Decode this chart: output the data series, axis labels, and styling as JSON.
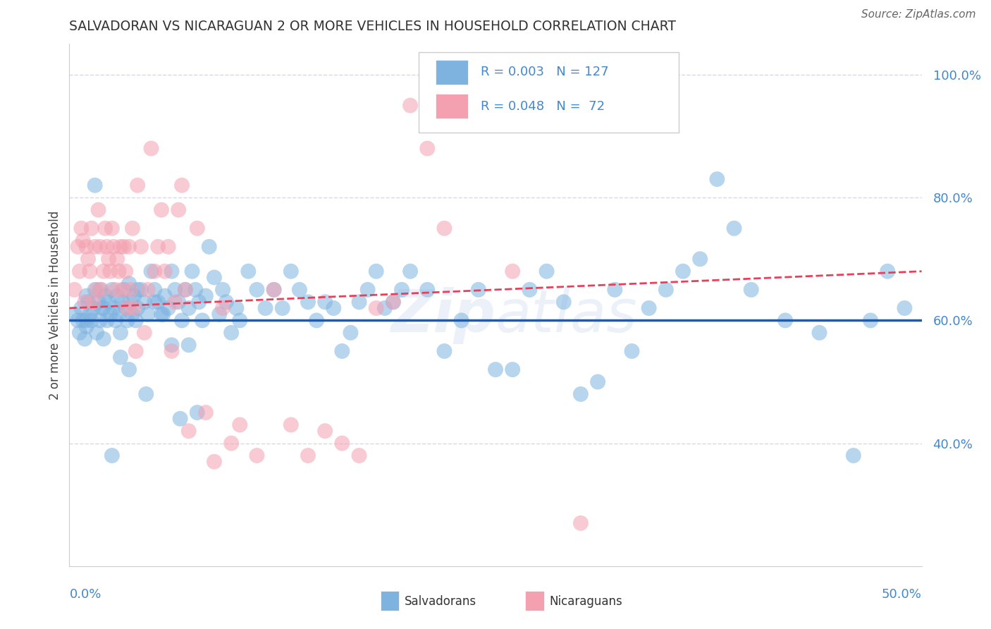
{
  "title": "SALVADORAN VS NICARAGUAN 2 OR MORE VEHICLES IN HOUSEHOLD CORRELATION CHART",
  "source": "Source: ZipAtlas.com",
  "ylabel": "2 or more Vehicles in Household",
  "watermark": "ZipAtlas",
  "x_min": 0.0,
  "x_max": 0.5,
  "y_min": 0.2,
  "y_max": 1.05,
  "ytick_labels": [
    "100.0%",
    "80.0%",
    "60.0%",
    "40.0%"
  ],
  "ytick_values": [
    1.0,
    0.8,
    0.6,
    0.4
  ],
  "blue_color": "#7EB3E0",
  "pink_color": "#F4A0B0",
  "trend_blue_color": "#1A5BB5",
  "trend_pink_color": "#E8405A",
  "background_color": "#FFFFFF",
  "grid_color": "#D8D8E8",
  "title_color": "#333333",
  "axis_label_color": "#4488CC",
  "blue_scatter_x": [
    0.003,
    0.005,
    0.006,
    0.007,
    0.008,
    0.009,
    0.01,
    0.01,
    0.011,
    0.012,
    0.013,
    0.014,
    0.015,
    0.016,
    0.017,
    0.018,
    0.018,
    0.019,
    0.02,
    0.021,
    0.022,
    0.023,
    0.024,
    0.025,
    0.026,
    0.027,
    0.028,
    0.029,
    0.03,
    0.031,
    0.032,
    0.033,
    0.034,
    0.035,
    0.036,
    0.037,
    0.038,
    0.039,
    0.04,
    0.042,
    0.044,
    0.046,
    0.048,
    0.05,
    0.052,
    0.054,
    0.056,
    0.058,
    0.06,
    0.062,
    0.064,
    0.066,
    0.068,
    0.07,
    0.072,
    0.074,
    0.076,
    0.078,
    0.08,
    0.082,
    0.085,
    0.088,
    0.09,
    0.092,
    0.095,
    0.098,
    0.1,
    0.105,
    0.11,
    0.115,
    0.12,
    0.125,
    0.13,
    0.135,
    0.14,
    0.145,
    0.15,
    0.155,
    0.16,
    0.165,
    0.17,
    0.175,
    0.18,
    0.185,
    0.19,
    0.195,
    0.2,
    0.21,
    0.22,
    0.23,
    0.24,
    0.25,
    0.26,
    0.27,
    0.28,
    0.29,
    0.3,
    0.31,
    0.32,
    0.33,
    0.34,
    0.35,
    0.36,
    0.37,
    0.38,
    0.39,
    0.4,
    0.42,
    0.44,
    0.46,
    0.47,
    0.48,
    0.49,
    0.01,
    0.015,
    0.02,
    0.025,
    0.03,
    0.035,
    0.04,
    0.045,
    0.05,
    0.055,
    0.06,
    0.065,
    0.07,
    0.075
  ],
  "blue_scatter_y": [
    0.61,
    0.6,
    0.58,
    0.62,
    0.6,
    0.57,
    0.64,
    0.59,
    0.63,
    0.61,
    0.6,
    0.62,
    0.65,
    0.58,
    0.63,
    0.6,
    0.65,
    0.62,
    0.57,
    0.64,
    0.6,
    0.63,
    0.61,
    0.65,
    0.62,
    0.6,
    0.64,
    0.61,
    0.58,
    0.63,
    0.65,
    0.62,
    0.6,
    0.66,
    0.63,
    0.61,
    0.64,
    0.6,
    0.62,
    0.65,
    0.63,
    0.61,
    0.68,
    0.65,
    0.63,
    0.61,
    0.64,
    0.62,
    0.68,
    0.65,
    0.63,
    0.6,
    0.65,
    0.62,
    0.68,
    0.65,
    0.63,
    0.6,
    0.64,
    0.72,
    0.67,
    0.61,
    0.65,
    0.63,
    0.58,
    0.62,
    0.6,
    0.68,
    0.65,
    0.62,
    0.65,
    0.62,
    0.68,
    0.65,
    0.63,
    0.6,
    0.63,
    0.62,
    0.55,
    0.58,
    0.63,
    0.65,
    0.68,
    0.62,
    0.63,
    0.65,
    0.68,
    0.65,
    0.55,
    0.6,
    0.65,
    0.52,
    0.52,
    0.65,
    0.68,
    0.63,
    0.48,
    0.5,
    0.65,
    0.55,
    0.62,
    0.65,
    0.68,
    0.7,
    0.83,
    0.75,
    0.65,
    0.6,
    0.58,
    0.38,
    0.6,
    0.68,
    0.62,
    0.6,
    0.82,
    0.62,
    0.38,
    0.54,
    0.52,
    0.65,
    0.48,
    0.63,
    0.61,
    0.56,
    0.44,
    0.56,
    0.45
  ],
  "pink_scatter_x": [
    0.003,
    0.005,
    0.006,
    0.007,
    0.008,
    0.009,
    0.01,
    0.011,
    0.012,
    0.013,
    0.014,
    0.015,
    0.016,
    0.017,
    0.018,
    0.019,
    0.02,
    0.021,
    0.022,
    0.023,
    0.024,
    0.025,
    0.026,
    0.027,
    0.028,
    0.029,
    0.03,
    0.031,
    0.032,
    0.033,
    0.034,
    0.035,
    0.036,
    0.037,
    0.038,
    0.039,
    0.04,
    0.042,
    0.044,
    0.046,
    0.048,
    0.05,
    0.052,
    0.054,
    0.056,
    0.058,
    0.06,
    0.062,
    0.064,
    0.066,
    0.068,
    0.07,
    0.075,
    0.08,
    0.085,
    0.09,
    0.095,
    0.1,
    0.11,
    0.12,
    0.13,
    0.14,
    0.15,
    0.16,
    0.17,
    0.18,
    0.19,
    0.2,
    0.21,
    0.22,
    0.26,
    0.3
  ],
  "pink_scatter_y": [
    0.65,
    0.72,
    0.68,
    0.75,
    0.73,
    0.63,
    0.72,
    0.7,
    0.68,
    0.75,
    0.63,
    0.72,
    0.65,
    0.78,
    0.72,
    0.65,
    0.68,
    0.75,
    0.72,
    0.7,
    0.68,
    0.75,
    0.72,
    0.65,
    0.7,
    0.68,
    0.72,
    0.65,
    0.72,
    0.68,
    0.62,
    0.72,
    0.65,
    0.75,
    0.62,
    0.55,
    0.82,
    0.72,
    0.58,
    0.65,
    0.88,
    0.68,
    0.72,
    0.78,
    0.68,
    0.72,
    0.55,
    0.63,
    0.78,
    0.82,
    0.65,
    0.42,
    0.75,
    0.45,
    0.37,
    0.62,
    0.4,
    0.43,
    0.38,
    0.65,
    0.43,
    0.38,
    0.42,
    0.4,
    0.38,
    0.62,
    0.63,
    0.95,
    0.88,
    0.75,
    0.68,
    0.27
  ],
  "blue_trend_x": [
    0.0,
    0.5
  ],
  "blue_trend_y": [
    0.6,
    0.6
  ],
  "pink_trend_x": [
    0.0,
    0.5
  ],
  "pink_trend_y": [
    0.62,
    0.68
  ]
}
